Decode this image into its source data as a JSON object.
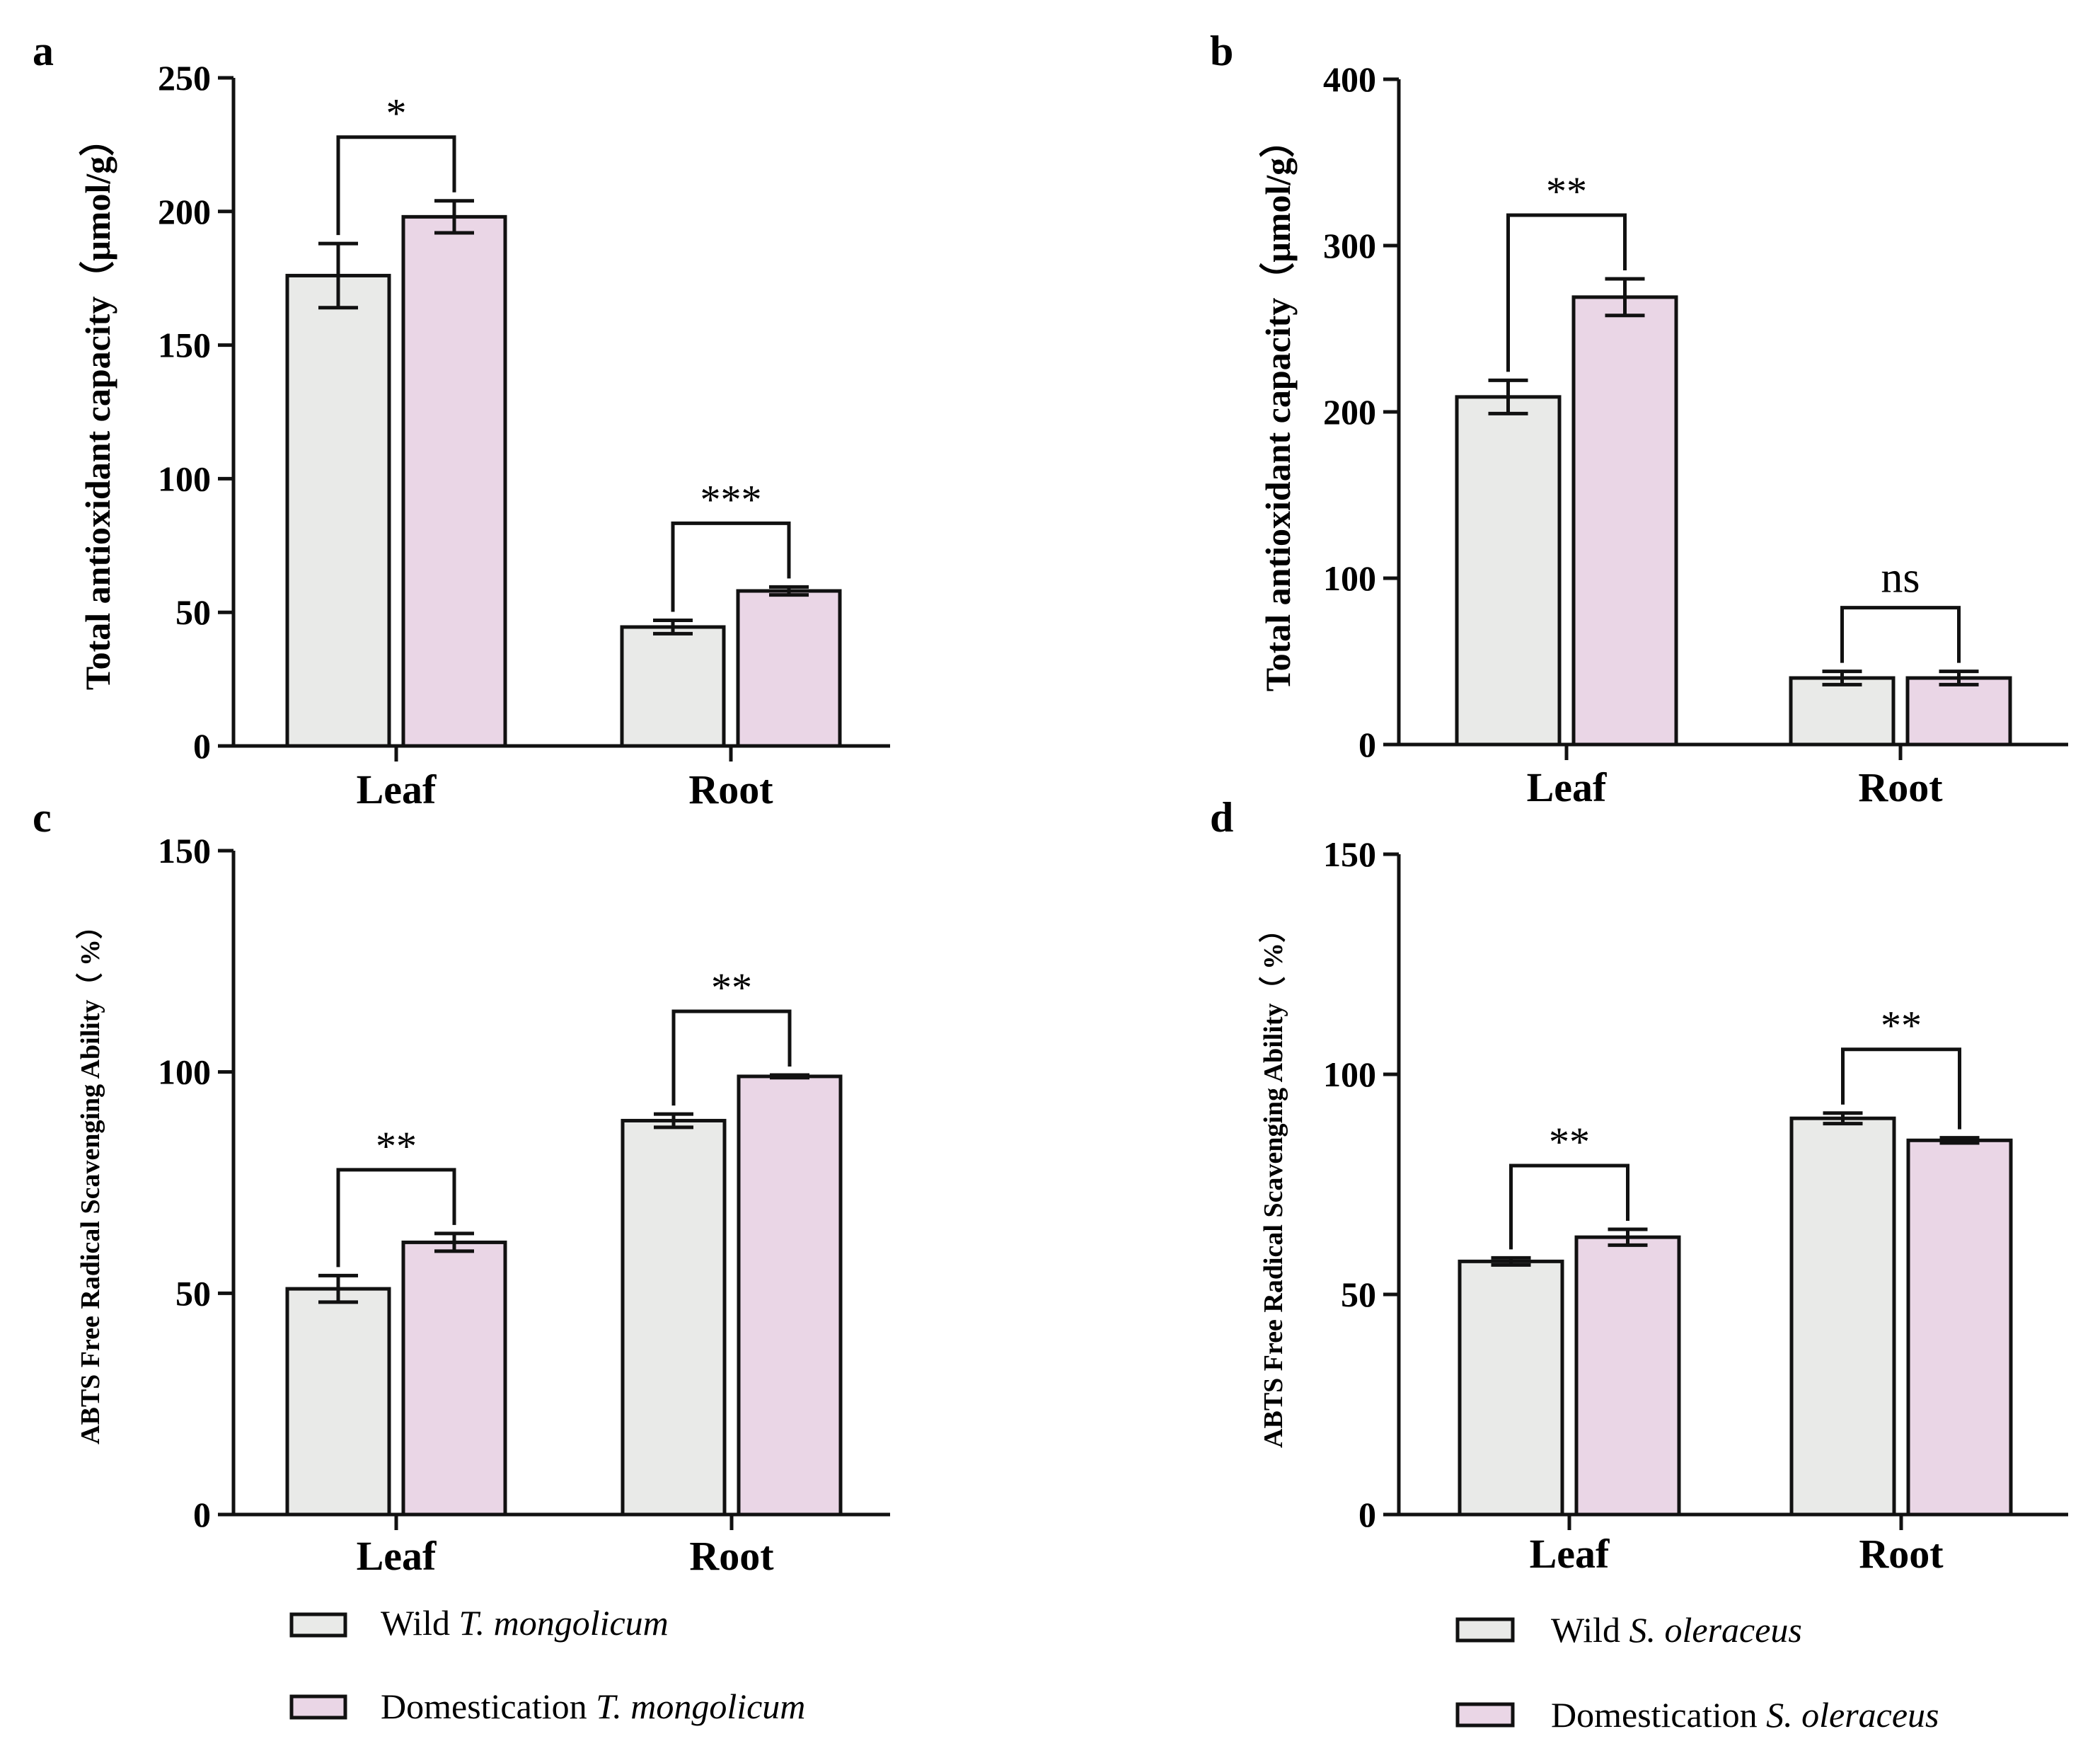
{
  "colors": {
    "wild": "#e9eae8",
    "domestication": "#ead6e6",
    "stroke": "#111111"
  },
  "chart_data": [
    {
      "type": "bar",
      "panel_label": "a",
      "title": "",
      "xlabel": "",
      "ylabel": "Total antioxidant capacity（μmol/g）",
      "ylim": [
        0,
        250
      ],
      "yticks": [
        0,
        50,
        100,
        150,
        200,
        250
      ],
      "categories": [
        "Leaf",
        "Root"
      ],
      "series": [
        {
          "name": "Wild T. mongolicum",
          "values": [
            176,
            44.5
          ],
          "errors": [
            12,
            2.5
          ]
        },
        {
          "name": "Domestication T. mongolicum",
          "values": [
            198,
            58
          ],
          "errors": [
            6,
            1.5
          ]
        }
      ],
      "significance": [
        "*",
        "***"
      ]
    },
    {
      "type": "bar",
      "panel_label": "b",
      "title": "",
      "xlabel": "",
      "ylabel": "Total antioxidant capacity（μmol/g）",
      "ylim": [
        0,
        400
      ],
      "yticks": [
        0,
        100,
        200,
        300,
        400
      ],
      "categories": [
        "Leaf",
        "Root"
      ],
      "series": [
        {
          "name": "Wild S. oleraceus",
          "values": [
            209,
            40
          ],
          "errors": [
            10,
            4
          ]
        },
        {
          "name": "Domestication S. oleraceus",
          "values": [
            269,
            40
          ],
          "errors": [
            11,
            4
          ]
        }
      ],
      "significance": [
        "**",
        "ns"
      ]
    },
    {
      "type": "bar",
      "panel_label": "c",
      "title": "",
      "xlabel": "",
      "ylabel": "ABTS Free Radical Scavenging Ability（ %）",
      "ylim": [
        0,
        150
      ],
      "yticks": [
        0,
        50,
        100,
        150
      ],
      "categories": [
        "Leaf",
        "Root"
      ],
      "series": [
        {
          "name": "Wild T. mongolicum",
          "values": [
            51,
            89
          ],
          "errors": [
            3,
            1.5
          ]
        },
        {
          "name": "Domestication T. mongolicum",
          "values": [
            61.5,
            99
          ],
          "errors": [
            2,
            0.3
          ]
        }
      ],
      "significance": [
        "**",
        "**"
      ]
    },
    {
      "type": "bar",
      "panel_label": "d",
      "title": "",
      "xlabel": "",
      "ylabel": "ABTS Free Radical Scavenging Ability（ %）",
      "ylim": [
        0,
        150
      ],
      "yticks": [
        0,
        50,
        100,
        150
      ],
      "categories": [
        "Leaf",
        "Root"
      ],
      "series": [
        {
          "name": "Wild S. oleraceus",
          "values": [
            57.5,
            90
          ],
          "errors": [
            0.8,
            1.2
          ]
        },
        {
          "name": "Domestication S. oleraceus",
          "values": [
            63,
            85
          ],
          "errors": [
            1.8,
            0.6
          ]
        }
      ],
      "significance": [
        "**",
        "**"
      ]
    }
  ],
  "legends": [
    {
      "items": [
        {
          "prefix": "Wild ",
          "species": "T. mongolicum"
        },
        {
          "prefix": "Domestication ",
          "species": "T. mongolicum"
        }
      ]
    },
    {
      "items": [
        {
          "prefix": "Wild ",
          "species": "S. oleraceus"
        },
        {
          "prefix": "Domestication ",
          "species": "S. oleraceus"
        }
      ]
    }
  ]
}
